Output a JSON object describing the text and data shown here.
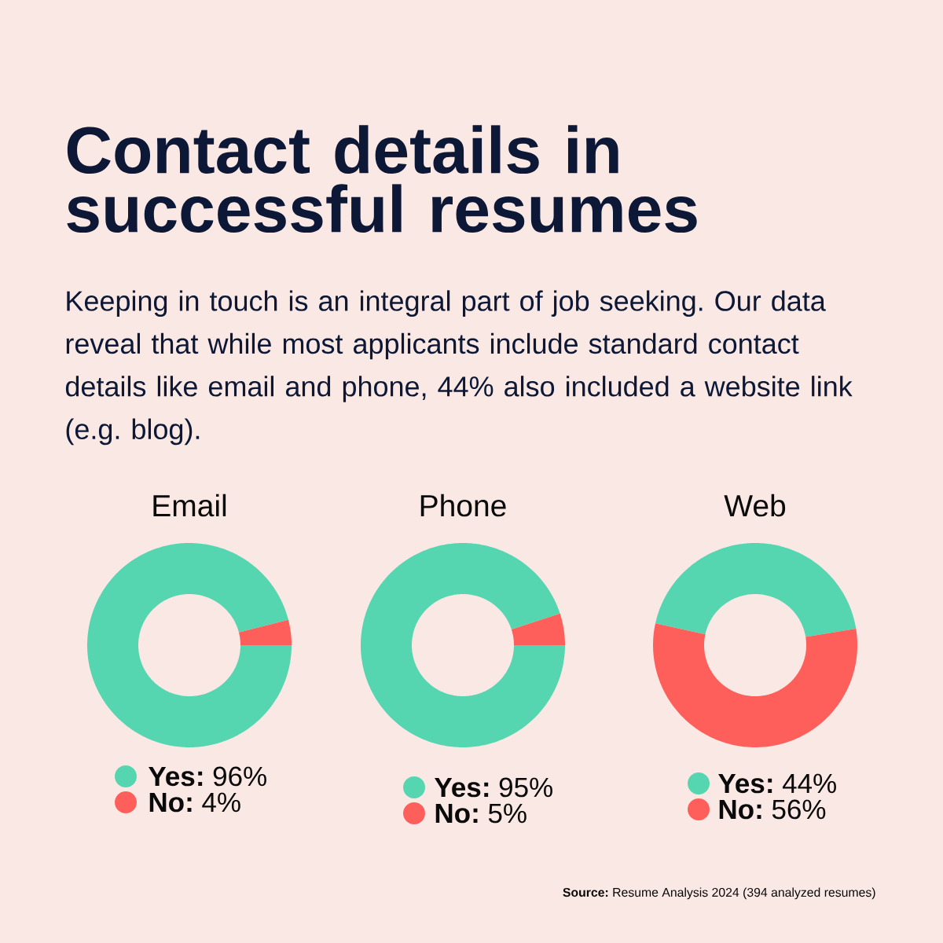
{
  "chart_data": [
    {
      "type": "other",
      "title": "Contact details in successful resumes",
      "subtitle": "Keeping in touch is an integral part of job seeking. Our data reveal that while most applicants include standard contact details like email and phone, 44% also included a website link (e.g. blog).",
      "annotations": [
        "**Source:** Resume Analysis 2024 (394 analyzed resumes)"
      ]
    },
    {
      "type": "donut",
      "title": "Email",
      "categories": [
        "Yes",
        "No"
      ],
      "values": [
        96,
        4
      ],
      "colors": [
        "#55d6b0",
        "#ff5f5a"
      ],
      "value_labels": [
        "96%",
        "4%"
      ],
      "legend": "bottom"
    },
    {
      "type": "donut",
      "title": "Phone",
      "categories": [
        "Yes",
        "No"
      ],
      "values": [
        95,
        5
      ],
      "colors": [
        "#55d6b0",
        "#ff5f5a"
      ],
      "value_labels": [
        "95%",
        "5%"
      ],
      "legend": "bottom"
    },
    {
      "type": "donut",
      "title": "Web",
      "categories": [
        "Yes",
        "No"
      ],
      "values": [
        44,
        56
      ],
      "colors": [
        "#55d6b0",
        "#ff5f5a"
      ],
      "value_labels": [
        "44%",
        "56%"
      ],
      "legend": "bottom"
    }
  ]
}
